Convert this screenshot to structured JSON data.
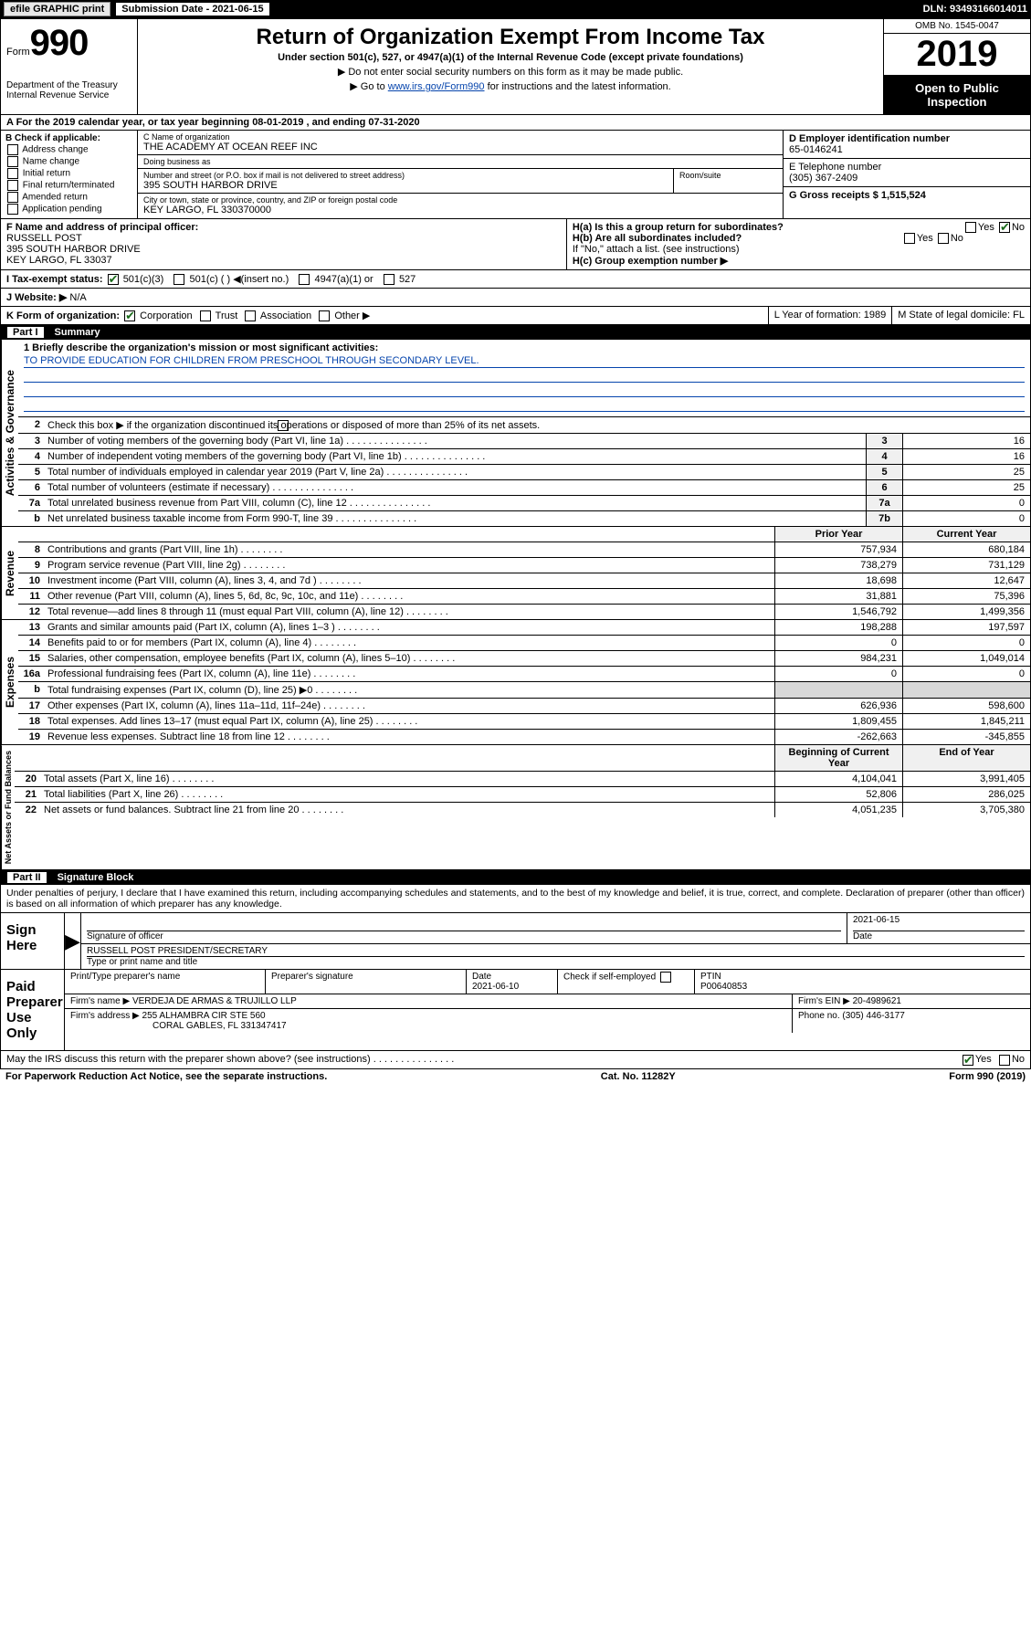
{
  "topbar": {
    "btn1": "efile GRAPHIC print",
    "sub_label": "Submission Date - 2021-06-15",
    "dln": "DLN: 93493166014011"
  },
  "header": {
    "form_word": "Form",
    "form_num": "990",
    "dept": "Department of the Treasury\nInternal Revenue Service",
    "title": "Return of Organization Exempt From Income Tax",
    "sub": "Under section 501(c), 527, or 4947(a)(1) of the Internal Revenue Code (except private foundations)",
    "note1": "▶ Do not enter social security numbers on this form as it may be made public.",
    "note2_pre": "▶ Go to ",
    "note2_link": "www.irs.gov/Form990",
    "note2_post": " for instructions and the latest information.",
    "omb": "OMB No. 1545-0047",
    "year": "2019",
    "inspection": "Open to Public Inspection"
  },
  "row_a": "A For the 2019 calendar year, or tax year beginning 08-01-2019    , and ending 07-31-2020",
  "col_b": {
    "header": "B Check if applicable:",
    "items": [
      "Address change",
      "Name change",
      "Initial return",
      "Final return/terminated",
      "Amended return",
      "Application pending"
    ]
  },
  "col_c": {
    "name_label": "C Name of organization",
    "name": "THE ACADEMY AT OCEAN REEF INC",
    "dba_label": "Doing business as",
    "dba": "",
    "street_label": "Number and street (or P.O. box if mail is not delivered to street address)",
    "room_label": "Room/suite",
    "street": "395 SOUTH HARBOR DRIVE",
    "city_label": "City or town, state or province, country, and ZIP or foreign postal code",
    "city": "KEY LARGO, FL  330370000"
  },
  "col_de": {
    "d_label": "D Employer identification number",
    "d_val": "65-0146241",
    "e_label": "E Telephone number",
    "e_val": "(305) 367-2409",
    "g_label": "G Gross receipts $ 1,515,524"
  },
  "row_f": {
    "f_label": "F  Name and address of principal officer:",
    "f_name": "RUSSELL POST",
    "f_addr1": "395 SOUTH HARBOR DRIVE",
    "f_addr2": "KEY LARGO, FL  33037",
    "ha": "H(a)  Is this a group return for subordinates?",
    "ha_yes": "Yes",
    "ha_no": "No",
    "hb": "H(b)  Are all subordinates included?",
    "hb_yes": "Yes",
    "hb_no": "No",
    "hb_note": "If \"No,\" attach a list. (see instructions)",
    "hc": "H(c)  Group exemption number ▶"
  },
  "row_i": {
    "label": "I  Tax-exempt status:",
    "o1": "501(c)(3)",
    "o2": "501(c) (  ) ◀(insert no.)",
    "o3": "4947(a)(1) or",
    "o4": "527"
  },
  "row_j": {
    "label": "J  Website: ▶",
    "val": "N/A"
  },
  "row_k": {
    "label": "K Form of organization:",
    "o1": "Corporation",
    "o2": "Trust",
    "o3": "Association",
    "o4": "Other ▶",
    "l": "L Year of formation: 1989",
    "m": "M State of legal domicile: FL"
  },
  "part1": {
    "tag": "Part I",
    "title": "Summary",
    "line1_label": "1   Briefly describe the organization's mission or most significant activities:",
    "mission": "TO PROVIDE EDUCATION FOR CHILDREN FROM PRESCHOOL THROUGH SECONDARY LEVEL.",
    "line2": "Check this box ▶        if the organization discontinued its operations or disposed of more than 25% of its net assets.",
    "gov_rows": [
      {
        "n": "3",
        "t": "Number of voting members of the governing body (Part VI, line 1a)",
        "box": "3",
        "v": "16"
      },
      {
        "n": "4",
        "t": "Number of independent voting members of the governing body (Part VI, line 1b)",
        "box": "4",
        "v": "16"
      },
      {
        "n": "5",
        "t": "Total number of individuals employed in calendar year 2019 (Part V, line 2a)",
        "box": "5",
        "v": "25"
      },
      {
        "n": "6",
        "t": "Total number of volunteers (estimate if necessary)",
        "box": "6",
        "v": "25"
      },
      {
        "n": "7a",
        "t": "Total unrelated business revenue from Part VIII, column (C), line 12",
        "box": "7a",
        "v": "0"
      },
      {
        "n": "b",
        "t": "Net unrelated business taxable income from Form 990-T, line 39",
        "box": "7b",
        "v": "0"
      }
    ],
    "col_headers": {
      "prior": "Prior Year",
      "current": "Current Year",
      "beg": "Beginning of Current Year",
      "end": "End of Year"
    },
    "rev_rows": [
      {
        "n": "8",
        "t": "Contributions and grants (Part VIII, line 1h)",
        "p": "757,934",
        "c": "680,184"
      },
      {
        "n": "9",
        "t": "Program service revenue (Part VIII, line 2g)",
        "p": "738,279",
        "c": "731,129"
      },
      {
        "n": "10",
        "t": "Investment income (Part VIII, column (A), lines 3, 4, and 7d )",
        "p": "18,698",
        "c": "12,647"
      },
      {
        "n": "11",
        "t": "Other revenue (Part VIII, column (A), lines 5, 6d, 8c, 9c, 10c, and 11e)",
        "p": "31,881",
        "c": "75,396"
      },
      {
        "n": "12",
        "t": "Total revenue—add lines 8 through 11 (must equal Part VIII, column (A), line 12)",
        "p": "1,546,792",
        "c": "1,499,356"
      }
    ],
    "exp_rows": [
      {
        "n": "13",
        "t": "Grants and similar amounts paid (Part IX, column (A), lines 1–3 )",
        "p": "198,288",
        "c": "197,597"
      },
      {
        "n": "14",
        "t": "Benefits paid to or for members (Part IX, column (A), line 4)",
        "p": "0",
        "c": "0"
      },
      {
        "n": "15",
        "t": "Salaries, other compensation, employee benefits (Part IX, column (A), lines 5–10)",
        "p": "984,231",
        "c": "1,049,014"
      },
      {
        "n": "16a",
        "t": "Professional fundraising fees (Part IX, column (A), line 11e)",
        "p": "0",
        "c": "0"
      },
      {
        "n": "b",
        "t": "Total fundraising expenses (Part IX, column (D), line 25) ▶0",
        "p": "",
        "c": "",
        "shade": true
      },
      {
        "n": "17",
        "t": "Other expenses (Part IX, column (A), lines 11a–11d, 11f–24e)",
        "p": "626,936",
        "c": "598,600"
      },
      {
        "n": "18",
        "t": "Total expenses. Add lines 13–17 (must equal Part IX, column (A), line 25)",
        "p": "1,809,455",
        "c": "1,845,211"
      },
      {
        "n": "19",
        "t": "Revenue less expenses. Subtract line 18 from line 12",
        "p": "-262,663",
        "c": "-345,855"
      }
    ],
    "net_rows": [
      {
        "n": "20",
        "t": "Total assets (Part X, line 16)",
        "p": "4,104,041",
        "c": "3,991,405"
      },
      {
        "n": "21",
        "t": "Total liabilities (Part X, line 26)",
        "p": "52,806",
        "c": "286,025"
      },
      {
        "n": "22",
        "t": "Net assets or fund balances. Subtract line 21 from line 20",
        "p": "4,051,235",
        "c": "3,705,380"
      }
    ],
    "vlabels": {
      "gov": "Activities & Governance",
      "rev": "Revenue",
      "exp": "Expenses",
      "net": "Net Assets or Fund Balances"
    }
  },
  "part2": {
    "tag": "Part II",
    "title": "Signature Block",
    "perjury": "Under penalties of perjury, I declare that I have examined this return, including accompanying schedules and statements, and to the best of my knowledge and belief, it is true, correct, and complete. Declaration of preparer (other than officer) is based on all information of which preparer has any knowledge.",
    "sign_here": "Sign Here",
    "sig_officer": "Signature of officer",
    "sig_date": "2021-06-15",
    "sig_date_lbl": "Date",
    "officer_name": "RUSSELL POST  PRESIDENT/SECRETARY",
    "type_label": "Type or print name and title",
    "paid": "Paid Preparer Use Only",
    "prep_name_lbl": "Print/Type preparer's name",
    "prep_sig_lbl": "Preparer's signature",
    "prep_date_lbl": "Date",
    "prep_date": "2021-06-10",
    "check_self": "Check        if self-employed",
    "ptin_lbl": "PTIN",
    "ptin": "P00640853",
    "firm_name_lbl": "Firm's name     ▶",
    "firm_name": "VERDEJA DE ARMAS & TRUJILLO LLP",
    "firm_ein_lbl": "Firm's EIN ▶",
    "firm_ein": "20-4989621",
    "firm_addr_lbl": "Firm's address ▶",
    "firm_addr1": "255 ALHAMBRA CIR STE 560",
    "firm_addr2": "CORAL GABLES, FL  331347417",
    "firm_phone_lbl": "Phone no.",
    "firm_phone": "(305) 446-3177",
    "discuss": "May the IRS discuss this return with the preparer shown above? (see instructions)",
    "yes": "Yes",
    "no": "No"
  },
  "footer": {
    "left": "For Paperwork Reduction Act Notice, see the separate instructions.",
    "mid": "Cat. No. 11282Y",
    "right": "Form 990 (2019)"
  },
  "colors": {
    "black": "#000000",
    "link": "#0645ad",
    "shade": "#d8d8d8"
  }
}
